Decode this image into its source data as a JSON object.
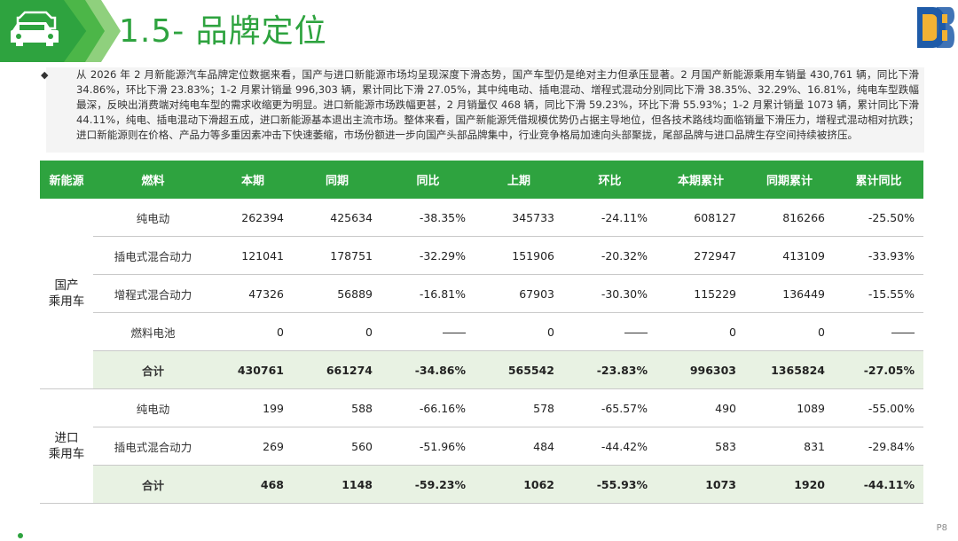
{
  "header": {
    "title": "1.5- 品牌定位"
  },
  "summary": {
    "bullet": "◆",
    "text": "从 2026 年 2 月新能源汽车品牌定位数据来看，国产与进口新能源市场均呈现深度下滑态势，国产车型仍是绝对主力但承压显著。2 月国产新能源乘用车销量 430,761 辆，同比下滑 34.86%，环比下滑 23.83%；1-2 月累计销量 996,303 辆，累计同比下滑 27.05%，其中纯电动、插电混动、增程式混动分别同比下滑 38.35%、32.29%、16.81%，纯电车型跌幅最深，反映出消费端对纯电车型的需求收缩更为明显。进口新能源市场跌幅更甚，2 月销量仅 468 辆，同比下滑 59.23%，环比下滑 55.93%；1-2 月累计销量 1073 辆，累计同比下滑 44.11%，纯电、插电混动下滑超五成，进口新能源基本退出主流市场。整体来看，国产新能源凭借规模优势仍占据主导地位，但各技术路线均面临销量下滑压力，增程式混动相对抗跌；进口新能源则在价格、产品力等多重因素冲击下快速萎缩，市场份额进一步向国产头部品牌集中，行业竞争格局加速向头部聚拢，尾部品牌与进口品牌生存空间持续被挤压。"
  },
  "table": {
    "headers": [
      "新能源",
      "燃料",
      "本期",
      "同期",
      "同比",
      "上期",
      "环比",
      "本期累计",
      "同期累计",
      "累计同比"
    ],
    "groups": [
      {
        "category": [
          "国产",
          "乘用车"
        ],
        "rows": [
          {
            "fuel": "纯电动",
            "cur": "262394",
            "yoy_base": "425634",
            "yoy": "-38.35%",
            "prev": "345733",
            "mom": "-24.11%",
            "cum": "608127",
            "cum_base": "816266",
            "cum_yoy": "-25.50%"
          },
          {
            "fuel": "插电式混合动力",
            "cur": "121041",
            "yoy_base": "178751",
            "yoy": "-32.29%",
            "prev": "151906",
            "mom": "-20.32%",
            "cum": "272947",
            "cum_base": "413109",
            "cum_yoy": "-33.93%"
          },
          {
            "fuel": "增程式混合动力",
            "cur": "47326",
            "yoy_base": "56889",
            "yoy": "-16.81%",
            "prev": "67903",
            "mom": "-30.30%",
            "cum": "115229",
            "cum_base": "136449",
            "cum_yoy": "-15.55%"
          },
          {
            "fuel": "燃料电池",
            "cur": "0",
            "yoy_base": "0",
            "yoy": "",
            "prev": "0",
            "mom": "",
            "cum": "0",
            "cum_base": "0",
            "cum_yoy": ""
          }
        ],
        "total": {
          "fuel": "合计",
          "cur": "430761",
          "yoy_base": "661274",
          "yoy": "-34.86%",
          "prev": "565542",
          "mom": "-23.83%",
          "cum": "996303",
          "cum_base": "1365824",
          "cum_yoy": "-27.05%"
        }
      },
      {
        "category": [
          "进口",
          "乘用车"
        ],
        "rows": [
          {
            "fuel": "纯电动",
            "cur": "199",
            "yoy_base": "588",
            "yoy": "-66.16%",
            "prev": "578",
            "mom": "-65.57%",
            "cum": "490",
            "cum_base": "1089",
            "cum_yoy": "-55.00%"
          },
          {
            "fuel": "插电式混合动力",
            "cur": "269",
            "yoy_base": "560",
            "yoy": "-51.96%",
            "prev": "484",
            "mom": "-44.42%",
            "cum": "583",
            "cum_base": "831",
            "cum_yoy": "-29.84%"
          }
        ],
        "total": {
          "fuel": "合计",
          "cur": "468",
          "yoy_base": "1148",
          "yoy": "-59.23%",
          "prev": "1062",
          "mom": "-55.93%",
          "cum": "1073",
          "cum_base": "1920",
          "cum_yoy": "-44.11%"
        }
      }
    ]
  },
  "footer": {
    "page": "P8"
  },
  "colors": {
    "brand_green": "#2ea33f",
    "light_green": "#e8f2e3"
  },
  "icons": {
    "header_icon": "car-icon",
    "logo": "brand-logo"
  }
}
